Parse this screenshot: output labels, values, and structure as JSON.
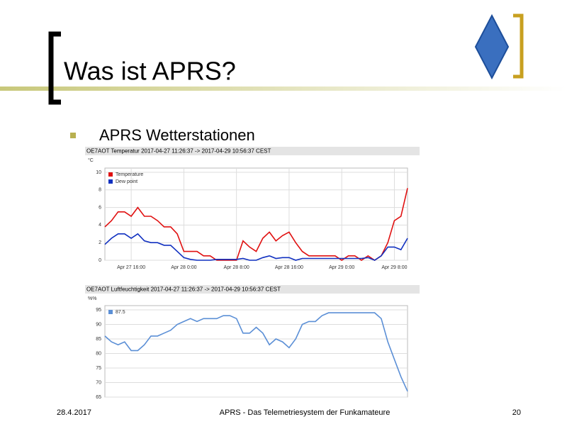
{
  "slide": {
    "title": "Was ist APRS?",
    "bullet": "APRS Wetterstationen",
    "footer": {
      "date": "28.4.2017",
      "text": "APRS - Das Telemetriesystem der Funkamateure",
      "page": "20"
    }
  },
  "chart_data": [
    {
      "type": "line",
      "title": "OE7AOT Temperatur 2017-04-27 11:26:37 -> 2017-04-29 10:56:37 CEST",
      "y_label": "°C",
      "categories": [
        null,
        null,
        null,
        null,
        "Apr 27 16:00",
        null,
        null,
        null,
        null,
        null,
        null,
        null,
        "Apr 28 0:00",
        null,
        null,
        null,
        null,
        null,
        null,
        null,
        "Apr 28 8:00",
        null,
        null,
        null,
        null,
        null,
        null,
        null,
        "Apr 28 16:00",
        null,
        null,
        null,
        null,
        null,
        null,
        null,
        "Apr 29 0:00",
        null,
        null,
        null,
        null,
        null,
        null,
        null,
        "Apr 29 8:00",
        null,
        null
      ],
      "series": [
        {
          "name": "Temperature",
          "color": "#e01010",
          "values": [
            3.8,
            4.5,
            5.5,
            5.5,
            5,
            6,
            5,
            5,
            4.5,
            3.8,
            3.8,
            3,
            1,
            1,
            1,
            0.5,
            0.5,
            0,
            0,
            0,
            0,
            2.2,
            1.5,
            1,
            2.5,
            3.2,
            2.2,
            2.8,
            3.2,
            2,
            1,
            0.5,
            0.5,
            0.5,
            0.5,
            0.5,
            0,
            0.5,
            0.5,
            0,
            0.5,
            0,
            0.5,
            2,
            4.5,
            5,
            8.2
          ]
        },
        {
          "name": "Dew point",
          "color": "#1030c0",
          "values": [
            1.8,
            2.5,
            3,
            3,
            2.5,
            3,
            2.2,
            2,
            2,
            1.7,
            1.7,
            1,
            0.3,
            0.1,
            0,
            0,
            0,
            0.1,
            0.1,
            0.1,
            0.1,
            0.2,
            0,
            0,
            0.3,
            0.5,
            0.2,
            0.3,
            0.3,
            0,
            0.2,
            0.2,
            0.2,
            0.2,
            0.2,
            0.2,
            0.2,
            0.2,
            0.2,
            0.2,
            0.3,
            0,
            0.5,
            1.5,
            1.5,
            1.2,
            2.5
          ]
        }
      ],
      "ylim": [
        0,
        10
      ],
      "yticks": [
        0,
        2,
        4,
        6,
        8,
        10
      ],
      "grid": true,
      "legend": "upper left"
    },
    {
      "type": "line",
      "title": "OE7AOT Luftfeuchtigkeit 2017-04-27 11:26:37 -> 2017-04-29 10:56:37 CEST",
      "y_label": "%%",
      "series": [
        {
          "name": "87.5",
          "color": "#5b8fd6",
          "values": [
            86,
            84,
            83,
            84,
            81,
            81,
            83,
            86,
            86,
            87,
            88,
            90,
            91,
            92,
            91,
            92,
            92,
            92,
            93,
            93,
            92,
            87,
            87,
            89,
            87,
            83,
            85,
            84,
            82,
            85,
            90,
            91,
            91,
            93,
            94,
            94,
            94,
            94,
            94,
            94,
            94,
            94,
            92,
            84,
            78,
            72,
            67
          ]
        }
      ],
      "ylim": [
        65,
        95
      ],
      "yticks": [
        65,
        70,
        75,
        80,
        85,
        90,
        95
      ],
      "grid": true,
      "legend": "upper left"
    }
  ]
}
